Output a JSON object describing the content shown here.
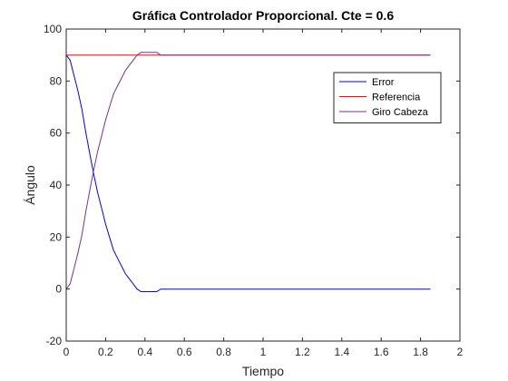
{
  "chart_data": {
    "type": "line",
    "title": "Gráfica Controlador Proporcional. Cte = 0.6",
    "xlabel": "Tiempo",
    "ylabel": "Ángulo",
    "xlim": [
      0,
      2
    ],
    "ylim": [
      -20,
      100
    ],
    "xticks": [
      0,
      0.2,
      0.4,
      0.6,
      0.8,
      1,
      1.2,
      1.4,
      1.6,
      1.8,
      2
    ],
    "xtick_labels": [
      "0",
      "0.2",
      "0.4",
      "0.6",
      "0.8",
      "1",
      "1.2",
      "1.4",
      "1.6",
      "1.8",
      "2"
    ],
    "yticks": [
      -20,
      0,
      20,
      40,
      60,
      80,
      100
    ],
    "ytick_labels": [
      "-20",
      "0",
      "20",
      "40",
      "60",
      "80",
      "100"
    ],
    "grid": false,
    "legend_position": "top-right",
    "series": [
      {
        "name": "Error",
        "color": "#0000ff",
        "x": [
          0,
          0.02,
          0.04,
          0.06,
          0.08,
          0.1,
          0.12,
          0.14,
          0.16,
          0.18,
          0.2,
          0.22,
          0.24,
          0.26,
          0.28,
          0.3,
          0.32,
          0.34,
          0.36,
          0.38,
          0.4,
          0.42,
          0.44,
          0.46,
          0.48,
          0.5,
          0.6,
          0.8,
          1.0,
          1.2,
          1.4,
          1.6,
          1.85
        ],
        "y": [
          90,
          88,
          82,
          76,
          69,
          60,
          52,
          44,
          37,
          31,
          25,
          20,
          15,
          12,
          9,
          6,
          4,
          2,
          0,
          -1,
          -1,
          -1,
          -1,
          -1,
          0,
          0,
          0,
          0,
          0,
          0,
          0,
          0,
          0
        ]
      },
      {
        "name": "Referencia",
        "color": "#ff0000",
        "x": [
          0,
          1.85
        ],
        "y": [
          90,
          90
        ]
      },
      {
        "name": "Giro Cabeza",
        "color": "#7e2f8e",
        "x": [
          0,
          0.02,
          0.04,
          0.06,
          0.08,
          0.1,
          0.12,
          0.14,
          0.16,
          0.18,
          0.2,
          0.22,
          0.24,
          0.26,
          0.28,
          0.3,
          0.32,
          0.34,
          0.36,
          0.38,
          0.4,
          0.42,
          0.44,
          0.46,
          0.48,
          0.5,
          0.6,
          0.8,
          1.0,
          1.2,
          1.4,
          1.6,
          1.85
        ],
        "y": [
          0,
          2,
          8,
          14,
          21,
          30,
          38,
          46,
          53,
          59,
          65,
          70,
          75,
          78,
          81,
          84,
          86,
          88,
          90,
          91,
          91,
          91,
          91,
          91,
          90,
          90,
          90,
          90,
          90,
          90,
          90,
          90,
          90
        ]
      }
    ]
  }
}
